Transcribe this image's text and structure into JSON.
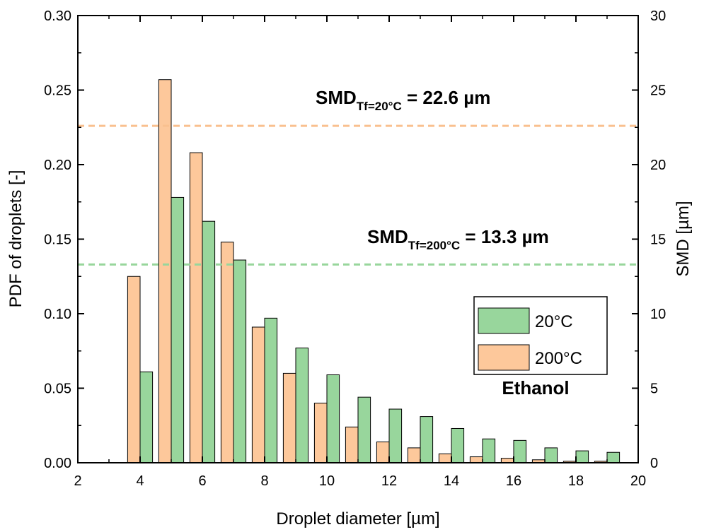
{
  "chart_data": {
    "type": "bar",
    "xlabel": "Droplet diameter [µm]",
    "ylabel": "PDF of droplets [-]",
    "y2label": "SMD [µm]",
    "xlim": [
      2,
      20
    ],
    "ylim": [
      0,
      0.3
    ],
    "y2lim": [
      0,
      30
    ],
    "xticks": [
      "2",
      "4",
      "6",
      "8",
      "10",
      "12",
      "14",
      "16",
      "18",
      "20"
    ],
    "yticks": [
      "0.00",
      "0.05",
      "0.10",
      "0.15",
      "0.20",
      "0.25",
      "0.30"
    ],
    "y2ticks": [
      "0",
      "5",
      "10",
      "15",
      "20",
      "25",
      "30"
    ],
    "x": [
      4,
      5,
      6,
      7,
      8,
      9,
      10,
      11,
      12,
      13,
      14,
      15,
      16,
      17,
      18,
      19
    ],
    "series": [
      {
        "name": "20°C",
        "color": "#98d69c",
        "values": [
          0.061,
          0.178,
          0.162,
          0.136,
          0.097,
          0.077,
          0.059,
          0.044,
          0.036,
          0.031,
          0.023,
          0.016,
          0.015,
          0.01,
          0.008,
          0.007
        ]
      },
      {
        "name": "200°C",
        "color": "#fdc89b",
        "values": [
          0.125,
          0.257,
          0.208,
          0.148,
          0.091,
          0.06,
          0.04,
          0.024,
          0.014,
          0.01,
          0.006,
          0.004,
          0.003,
          0.002,
          0.001,
          0.001
        ]
      }
    ],
    "reference_lines": [
      {
        "axis": "y2",
        "value": 22.6,
        "color": "#f9c08f",
        "label_main": "SMD",
        "label_sub": "Tf=20°C",
        "label_value": " = 22.6 µm"
      },
      {
        "axis": "y2",
        "value": 13.3,
        "color": "#98d69c",
        "label_main": "SMD",
        "label_sub": "Tf=200°C",
        "label_value": " = 13.3 µm"
      }
    ],
    "annotation": "Ethanol",
    "legend_position": "center-right",
    "grid": false
  }
}
